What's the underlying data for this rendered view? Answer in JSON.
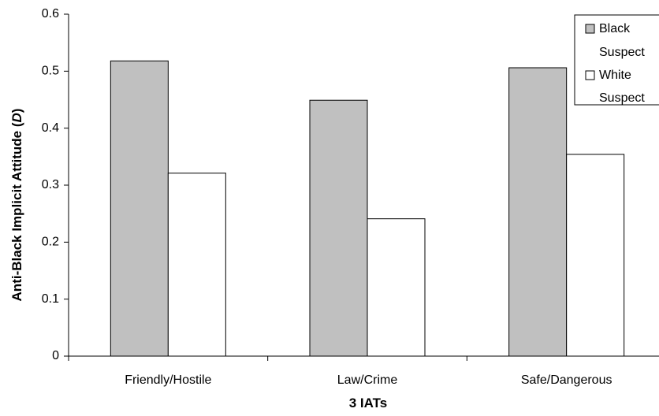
{
  "chart_data": {
    "type": "bar",
    "categories": [
      "Friendly/Hostile",
      "Law/Crime",
      "Safe/Dangerous"
    ],
    "series": [
      {
        "name": "Black Suspect",
        "name_lines": [
          "Black",
          "Suspect"
        ],
        "values": [
          0.518,
          0.449,
          0.506
        ],
        "color": "#c0c0c0"
      },
      {
        "name": "White Suspect",
        "name_lines": [
          "White",
          "Suspect"
        ],
        "values": [
          0.321,
          0.241,
          0.354
        ],
        "color": "#ffffff"
      }
    ],
    "xlabel": "3 IATs",
    "ylabel_main": "Anti-Black Implicit Attitude (",
    "ylabel_italic": "D",
    "ylabel_end": ")",
    "ylim": [
      0,
      0.6
    ],
    "yticks": [
      "0",
      "0.1",
      "0.2",
      "0.3",
      "0.4",
      "0.5",
      "0.6"
    ],
    "ytick_values": [
      0,
      0.1,
      0.2,
      0.3,
      0.4,
      0.5,
      0.6
    ],
    "grid": false,
    "legend_position": "top-right"
  }
}
